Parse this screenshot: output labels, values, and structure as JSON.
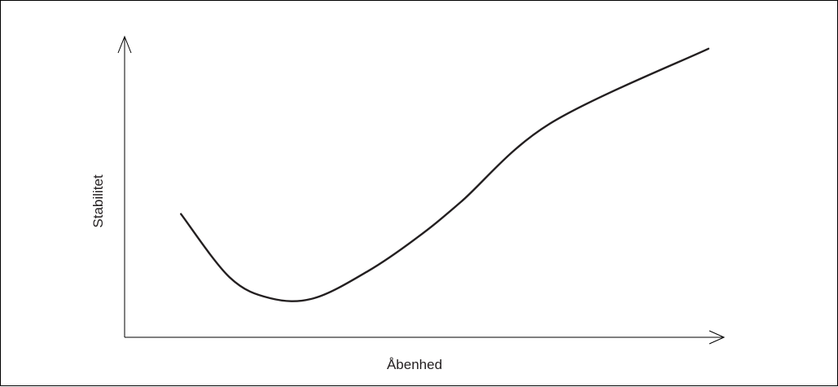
{
  "chart_data": {
    "type": "line",
    "title": "",
    "xlabel": "Åbenhed",
    "ylabel": "Stabilitet",
    "axis_ticks": false,
    "grid": false,
    "legend": "none",
    "xlim": [
      0,
      1
    ],
    "ylim": [
      0,
      1
    ],
    "series": [
      {
        "color": "#231f20",
        "points": [
          [
            0.094,
            0.41
          ],
          [
            0.175,
            0.2
          ],
          [
            0.243,
            0.13
          ],
          [
            0.316,
            0.13
          ],
          [
            0.406,
            0.22
          ],
          [
            0.487,
            0.33
          ],
          [
            0.561,
            0.45
          ],
          [
            0.709,
            0.71
          ],
          [
            0.974,
            0.96
          ]
        ]
      }
    ]
  }
}
